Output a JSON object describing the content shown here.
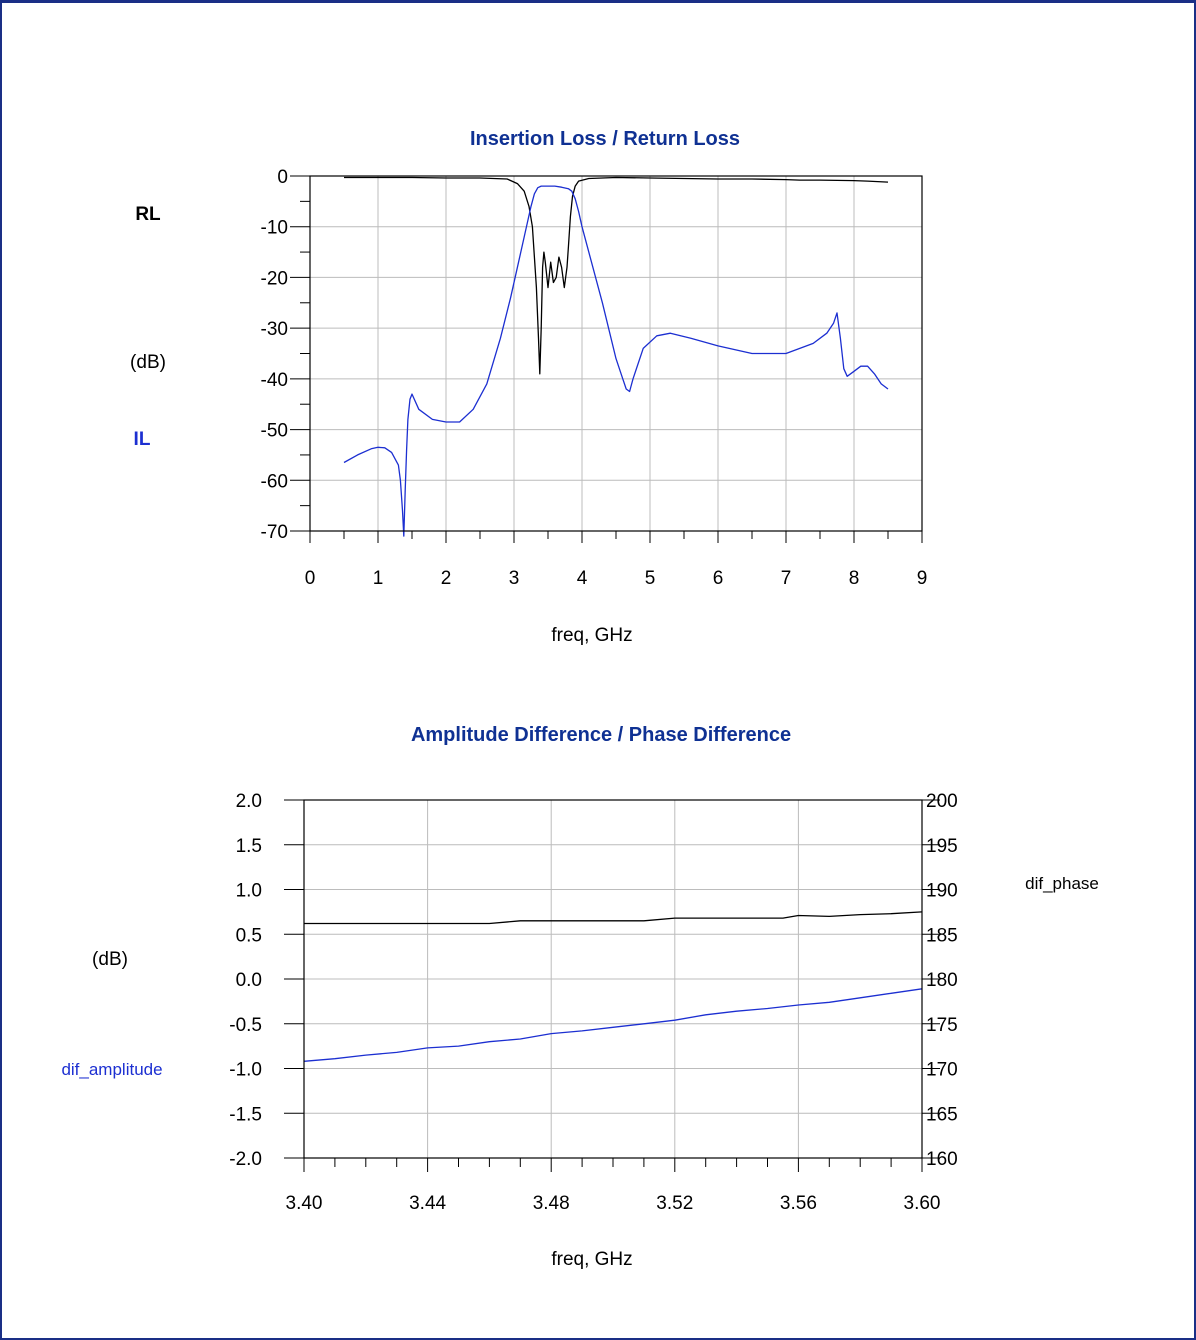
{
  "colors": {
    "frame": "#1a2f86",
    "title": "#0f3193",
    "blue": "#1c2fd1",
    "black": "#000000",
    "grid": "#bcbcbc"
  },
  "chart_data": [
    {
      "type": "line",
      "title_main": "Insertion Loss",
      "title_sep": " / ",
      "title_second": "Return Loss",
      "xlabel": "freq, GHz",
      "ylabel": "(dB)",
      "xlim": [
        0,
        9
      ],
      "ylim": [
        -70,
        0
      ],
      "xticks": [
        "0",
        "1",
        "2",
        "3",
        "4",
        "5",
        "6",
        "7",
        "8",
        "9"
      ],
      "yticks": [
        "0",
        "-10",
        "-20",
        "-30",
        "-40",
        "-50",
        "-60",
        "-70"
      ],
      "grid": true,
      "series": [
        {
          "name": "RL",
          "color": "#000000",
          "x": [
            0.5,
            1,
            1.5,
            2,
            2.5,
            2.9,
            3.05,
            3.15,
            3.22,
            3.27,
            3.3,
            3.33,
            3.36,
            3.38,
            3.4,
            3.42,
            3.44,
            3.46,
            3.5,
            3.54,
            3.58,
            3.62,
            3.66,
            3.7,
            3.74,
            3.78,
            3.8,
            3.83,
            3.86,
            3.9,
            3.95,
            4.1,
            4.5,
            5,
            5.5,
            6,
            6.5,
            7,
            7.2,
            7.5,
            8,
            8.2,
            8.5
          ],
          "y": [
            -0.3,
            -0.3,
            -0.3,
            -0.4,
            -0.4,
            -0.6,
            -1.5,
            -3,
            -6,
            -10,
            -16,
            -22,
            -32,
            -39,
            -30,
            -18,
            -15,
            -17,
            -22,
            -17,
            -21,
            -20,
            -16,
            -18,
            -22,
            -18,
            -14,
            -8,
            -4,
            -2,
            -1,
            -0.5,
            -0.3,
            -0.4,
            -0.5,
            -0.6,
            -0.6,
            -0.7,
            -0.8,
            -0.8,
            -0.9,
            -1.0,
            -1.2
          ]
        },
        {
          "name": "IL",
          "color": "#1c2fd1",
          "x": [
            0.5,
            0.7,
            0.9,
            1.0,
            1.1,
            1.2,
            1.3,
            1.33,
            1.36,
            1.38,
            1.4,
            1.42,
            1.44,
            1.47,
            1.5,
            1.6,
            1.8,
            2.0,
            2.2,
            2.4,
            2.6,
            2.8,
            2.95,
            3.05,
            3.15,
            3.25,
            3.3,
            3.35,
            3.4,
            3.5,
            3.6,
            3.7,
            3.8,
            3.85,
            3.9,
            3.95,
            4.0,
            4.1,
            4.3,
            4.5,
            4.6,
            4.65,
            4.7,
            4.75,
            4.9,
            5.1,
            5.3,
            5.6,
            6.0,
            6.5,
            7.0,
            7.4,
            7.6,
            7.7,
            7.75,
            7.8,
            7.85,
            7.9,
            8.0,
            8.1,
            8.2,
            8.3,
            8.4,
            8.5
          ],
          "y": [
            -56.5,
            -55,
            -53.8,
            -53.5,
            -53.6,
            -54.5,
            -57,
            -60,
            -66,
            -71,
            -62,
            -54,
            -48,
            -44,
            -43,
            -46,
            -48,
            -48.5,
            -48.5,
            -46,
            -41,
            -32,
            -24,
            -18,
            -12,
            -6,
            -3.5,
            -2.3,
            -2,
            -2,
            -2,
            -2.2,
            -2.5,
            -3,
            -4.5,
            -7,
            -10,
            -15,
            -25,
            -36,
            -40,
            -42,
            -42.5,
            -40,
            -34,
            -31.5,
            -31,
            -32,
            -33.5,
            -35,
            -35,
            -33,
            -31,
            -29,
            -27,
            -32,
            -38,
            -39.5,
            -38.5,
            -37.5,
            -37.5,
            -39,
            -41,
            -42
          ]
        }
      ]
    },
    {
      "type": "line",
      "title_main": "Amplitude Difference",
      "title_sep": " / ",
      "title_second": "Phase Difference",
      "xlabel": "freq, GHz",
      "ylabel": "(dB)",
      "xlim": [
        3.4,
        3.6
      ],
      "ylim": [
        -2.0,
        2.0
      ],
      "y2lim": [
        160,
        200
      ],
      "xticks": [
        "3.40",
        "3.44",
        "3.48",
        "3.52",
        "3.56",
        "3.60"
      ],
      "yticks": [
        "2.0",
        "1.5",
        "1.0",
        "0.5",
        "0.0",
        "-0.5",
        "-1.0",
        "-1.5",
        "-2.0"
      ],
      "y2ticks": [
        "200",
        "195",
        "190",
        "185",
        "180",
        "175",
        "170",
        "165",
        "160"
      ],
      "grid": true,
      "series": [
        {
          "name": "dif_phase",
          "axis": "right",
          "color": "#000000",
          "x": [
            3.4,
            3.42,
            3.44,
            3.46,
            3.47,
            3.48,
            3.5,
            3.51,
            3.52,
            3.54,
            3.555,
            3.56,
            3.57,
            3.58,
            3.59,
            3.6
          ],
          "y": [
            186.2,
            186.2,
            186.2,
            186.2,
            186.5,
            186.5,
            186.5,
            186.5,
            186.8,
            186.8,
            186.8,
            187.1,
            187.0,
            187.2,
            187.3,
            187.5
          ]
        },
        {
          "name": "dif_amplitude",
          "axis": "left",
          "color": "#1c2fd1",
          "x": [
            3.4,
            3.41,
            3.42,
            3.43,
            3.44,
            3.45,
            3.46,
            3.47,
            3.48,
            3.49,
            3.5,
            3.51,
            3.52,
            3.53,
            3.54,
            3.55,
            3.56,
            3.57,
            3.58,
            3.59,
            3.6
          ],
          "y": [
            -0.92,
            -0.89,
            -0.85,
            -0.82,
            -0.77,
            -0.75,
            -0.7,
            -0.67,
            -0.61,
            -0.58,
            -0.54,
            -0.5,
            -0.46,
            -0.4,
            -0.36,
            -0.33,
            -0.29,
            -0.26,
            -0.21,
            -0.16,
            -0.11
          ]
        }
      ]
    }
  ]
}
